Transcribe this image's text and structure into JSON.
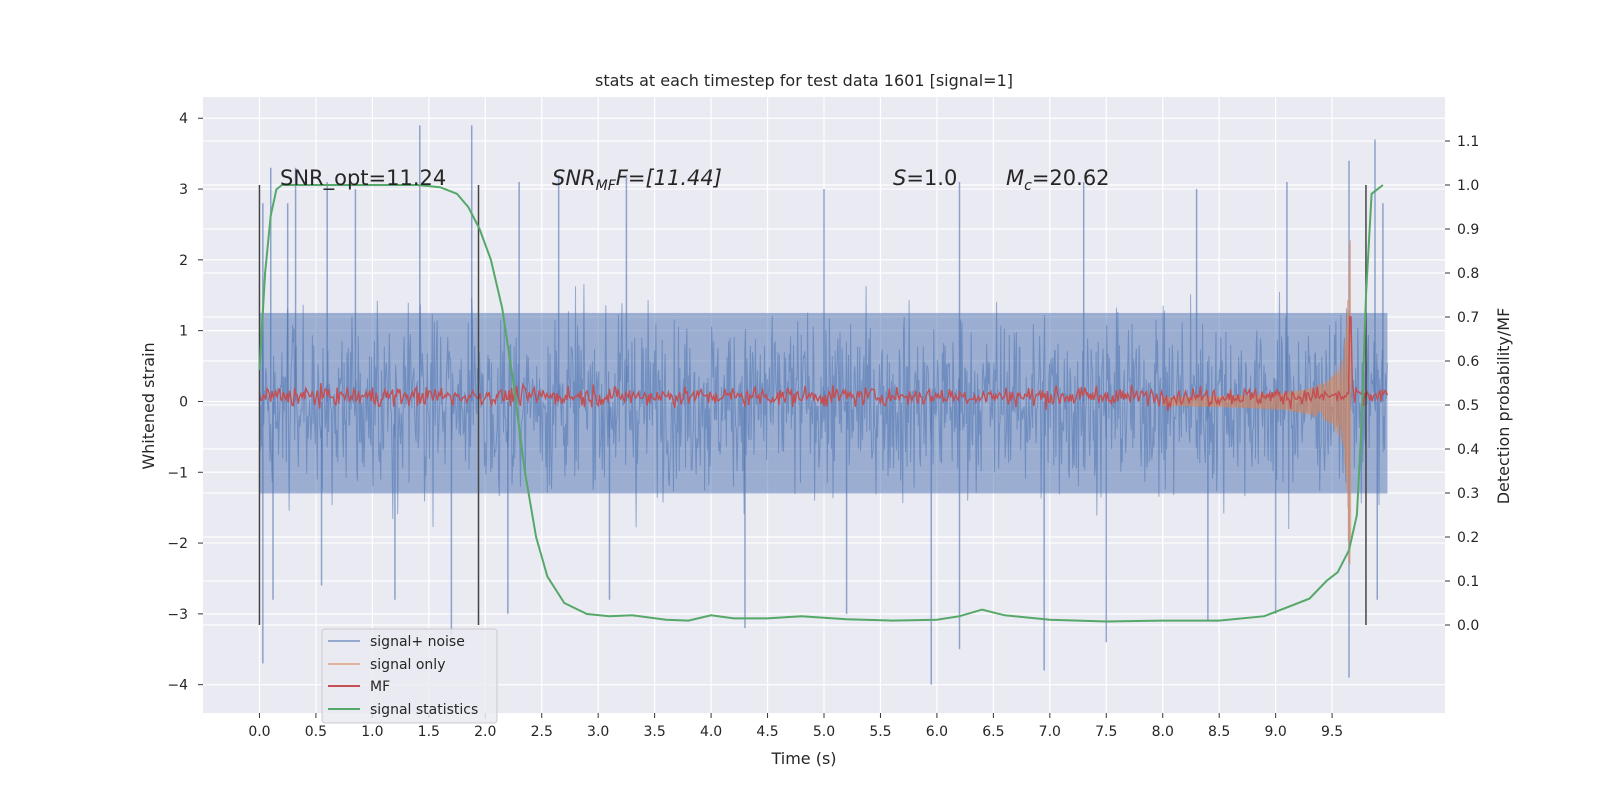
{
  "chart_data": {
    "type": "line",
    "title": "stats at each timestep for test data 1601 [signal=1]",
    "xlabel": "Time (s)",
    "ylabel": "Whitened strain",
    "ylabel_right": "Detection probability/MF",
    "xlim": [
      -0.5,
      10.5
    ],
    "ylim": [
      -4.4,
      4.3
    ],
    "ylim_right": [
      -0.2,
      1.2
    ],
    "xticks": [
      "0.0",
      "0.5",
      "1.0",
      "1.5",
      "2.0",
      "2.5",
      "3.0",
      "3.5",
      "4.0",
      "4.5",
      "5.0",
      "5.5",
      "6.0",
      "6.5",
      "7.0",
      "7.5",
      "8.0",
      "8.5",
      "9.0",
      "9.5"
    ],
    "yticks": [
      "4",
      "3",
      "2",
      "1",
      "0",
      "−1",
      "−2",
      "−3",
      "−4"
    ],
    "yticks_right": [
      "1.1",
      "1.0",
      "0.9",
      "0.8",
      "0.7",
      "0.6",
      "0.5",
      "0.4",
      "0.3",
      "0.2",
      "0.1",
      "0.0"
    ],
    "grid": true,
    "legend_position": "lower-left",
    "annotations": {
      "snr_opt": "SNR_opt=11.24",
      "snr_mf_base": "SNR",
      "snr_mf_sub": "MF",
      "snr_mf_rest": "F=[11.44]",
      "s_label": "S",
      "s_value": "=1.0",
      "mc_base": "M",
      "mc_sub": "c",
      "mc_value": "=20.62"
    },
    "vlines": [
      0.0,
      1.94,
      9.8
    ],
    "colors": {
      "signal_noise": "#4c72b0",
      "signal_only": "#dd8452",
      "mf": "#c44e52",
      "signal_statistics": "#55a868",
      "vline": "#444444",
      "background": "#eaeaf2"
    },
    "series": [
      {
        "name": "signal+ noise",
        "axis": "left",
        "x_range": [
          0.0,
          9.99
        ],
        "envelope_upper": [
          [
            0.0,
            2.3
          ],
          [
            0.2,
            2.4
          ],
          [
            0.5,
            2.2
          ],
          [
            1.0,
            2.3
          ],
          [
            1.5,
            2.3
          ],
          [
            2.0,
            2.2
          ],
          [
            3.0,
            2.3
          ],
          [
            4.0,
            2.2
          ],
          [
            5.0,
            2.3
          ],
          [
            6.0,
            2.2
          ],
          [
            7.0,
            2.3
          ],
          [
            8.0,
            2.3
          ],
          [
            9.0,
            2.4
          ],
          [
            9.5,
            2.5
          ],
          [
            9.99,
            2.5
          ]
        ],
        "envelope_lower": [
          [
            0.0,
            -2.3
          ],
          [
            0.2,
            -2.4
          ],
          [
            0.5,
            -2.3
          ],
          [
            1.0,
            -2.3
          ],
          [
            1.5,
            -2.3
          ],
          [
            2.0,
            -2.3
          ],
          [
            3.0,
            -2.4
          ],
          [
            4.0,
            -2.3
          ],
          [
            5.0,
            -2.3
          ],
          [
            6.0,
            -2.3
          ],
          [
            7.0,
            -2.3
          ],
          [
            8.0,
            -2.3
          ],
          [
            9.0,
            -2.4
          ],
          [
            9.5,
            -2.5
          ],
          [
            9.99,
            -2.5
          ]
        ],
        "peaks": [
          [
            0.03,
            2.8
          ],
          [
            0.1,
            3.3
          ],
          [
            0.25,
            2.8
          ],
          [
            0.32,
            3.3
          ],
          [
            0.6,
            3.1
          ],
          [
            0.85,
            3.0
          ],
          [
            1.42,
            3.9
          ],
          [
            1.88,
            3.9
          ],
          [
            2.3,
            3.1
          ],
          [
            2.65,
            3.2
          ],
          [
            3.25,
            3.2
          ],
          [
            5.0,
            3.0
          ],
          [
            6.2,
            3.1
          ],
          [
            7.3,
            3.1
          ],
          [
            8.3,
            3.0
          ],
          [
            9.1,
            3.1
          ],
          [
            9.65,
            3.4
          ],
          [
            9.88,
            3.7
          ],
          [
            9.95,
            2.8
          ]
        ],
        "troughs": [
          [
            0.03,
            -3.7
          ],
          [
            0.12,
            -2.8
          ],
          [
            0.55,
            -2.6
          ],
          [
            1.2,
            -2.8
          ],
          [
            1.7,
            -3.3
          ],
          [
            2.2,
            -3.0
          ],
          [
            3.1,
            -2.8
          ],
          [
            4.3,
            -3.2
          ],
          [
            5.2,
            -3.0
          ],
          [
            5.95,
            -4.0
          ],
          [
            6.2,
            -3.5
          ],
          [
            6.95,
            -3.8
          ],
          [
            7.5,
            -3.4
          ],
          [
            8.4,
            -3.1
          ],
          [
            9.0,
            -3.0
          ],
          [
            9.65,
            -3.9
          ],
          [
            9.9,
            -2.8
          ]
        ]
      },
      {
        "name": "signal only",
        "axis": "left",
        "description_values": [
          [
            8.5,
            0.2
          ],
          [
            9.0,
            0.35
          ],
          [
            9.3,
            0.55
          ],
          [
            9.5,
            0.9
          ],
          [
            9.6,
            1.5
          ],
          [
            9.65,
            2.3
          ],
          [
            9.67,
            0.0
          ]
        ]
      },
      {
        "name": "MF",
        "axis": "right",
        "baseline": 0.52,
        "amplitude": 0.025,
        "spike": [
          9.66,
          0.7
        ]
      },
      {
        "name": "signal statistics",
        "axis": "right",
        "x": [
          0.0,
          0.05,
          0.1,
          0.15,
          0.2,
          0.3,
          0.5,
          1.0,
          1.4,
          1.6,
          1.75,
          1.85,
          1.95,
          2.05,
          2.15,
          2.25,
          2.35,
          2.45,
          2.55,
          2.7,
          2.9,
          3.1,
          3.3,
          3.6,
          3.8,
          4.0,
          4.2,
          4.5,
          4.8,
          5.2,
          5.6,
          6.0,
          6.2,
          6.4,
          6.6,
          7.0,
          7.5,
          8.0,
          8.5,
          8.9,
          9.1,
          9.3,
          9.45,
          9.55,
          9.65,
          9.72,
          9.76,
          9.8,
          9.85,
          9.9,
          9.95
        ],
        "y": [
          0.58,
          0.8,
          0.93,
          0.99,
          1.0,
          1.0,
          1.0,
          1.0,
          1.0,
          0.995,
          0.98,
          0.95,
          0.9,
          0.83,
          0.72,
          0.55,
          0.35,
          0.2,
          0.11,
          0.05,
          0.025,
          0.02,
          0.022,
          0.012,
          0.01,
          0.022,
          0.015,
          0.015,
          0.02,
          0.013,
          0.01,
          0.012,
          0.02,
          0.035,
          0.022,
          0.012,
          0.008,
          0.01,
          0.01,
          0.02,
          0.04,
          0.06,
          0.1,
          0.12,
          0.17,
          0.25,
          0.45,
          0.75,
          0.98,
          0.99,
          1.0
        ]
      }
    ]
  }
}
